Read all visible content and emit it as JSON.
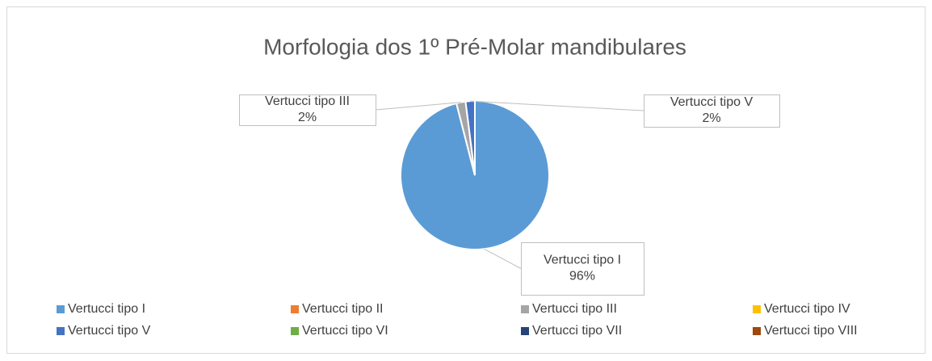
{
  "chart_data": {
    "type": "pie",
    "title": "Morfologia dos 1º Pré-Molar mandibulares",
    "categories": [
      "Vertucci tipo I",
      "Vertucci tipo II",
      "Vertucci tipo III",
      "Vertucci tipo IV",
      "Vertucci tipo V",
      "Vertucci tipo VI",
      "Vertucci tipo VII",
      "Vertucci tipo VIII"
    ],
    "values": [
      96,
      0,
      2,
      0,
      2,
      0,
      0,
      0
    ],
    "value_labels": [
      "96%",
      null,
      "2%",
      null,
      "2%",
      null,
      null,
      null
    ],
    "colors": [
      "#5b9bd5",
      "#ed7d31",
      "#a5a5a5",
      "#ffc000",
      "#4472c4",
      "#70ad47",
      "#264478",
      "#9e480e"
    ],
    "legend": "bottom"
  }
}
